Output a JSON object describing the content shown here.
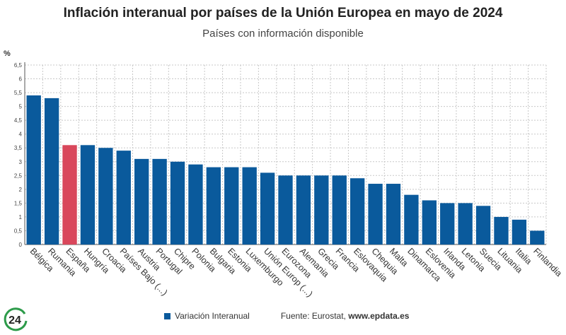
{
  "chart_data": {
    "type": "bar",
    "title": "Inflación interanual por países de la Unión Europea en mayo de 2024",
    "subtitle": "Países con información disponible",
    "ylabel": "%",
    "xlabel": "",
    "ylim": [
      0,
      6.5
    ],
    "yticks": [
      "0",
      "0,5",
      "1",
      "1,5",
      "2",
      "2,5",
      "3",
      "3,5",
      "4",
      "4,5",
      "5",
      "5,5",
      "6",
      "6,5"
    ],
    "grid": true,
    "categories": [
      "Bélgica",
      "Rumania",
      "España",
      "Hungría",
      "Croacia",
      "Países Bajo (...)",
      "Austria",
      "Portugal",
      "Chipre",
      "Polonia",
      "Bulgaria",
      "Estonia",
      "Luxemburgo",
      "Unión Europ (...)",
      "Eurozona",
      "Alemania",
      "Grecia",
      "Francia",
      "Eslovaquia",
      "Chequia",
      "Malta",
      "Dinamarca",
      "Eslovenia",
      "Irlanda",
      "Letonia",
      "Suecia",
      "Lituania",
      "Italia",
      "Finlandia"
    ],
    "series": [
      {
        "name": "Variación Interanual",
        "values": [
          5.4,
          5.3,
          3.6,
          3.6,
          3.5,
          3.4,
          3.1,
          3.1,
          3.0,
          2.9,
          2.8,
          2.8,
          2.8,
          2.6,
          2.5,
          2.5,
          2.5,
          2.5,
          2.4,
          2.2,
          2.2,
          1.8,
          1.6,
          1.5,
          1.5,
          1.4,
          1.0,
          0.9,
          0.5
        ]
      }
    ],
    "highlight_category": "España",
    "colors": {
      "bar": "#0a5a9c",
      "highlight": "#d9475b",
      "grid": "#c8c8c8",
      "axis": "#555555"
    }
  },
  "legend": {
    "label": "Variación Interanual",
    "source": "Fuente: Eurostat, www.epdata.es",
    "source_prefix": "Fuente: Eurostat, ",
    "source_site": "www.epdata.es"
  },
  "logo": {
    "text": "24",
    "color": "#2d9b4a"
  }
}
